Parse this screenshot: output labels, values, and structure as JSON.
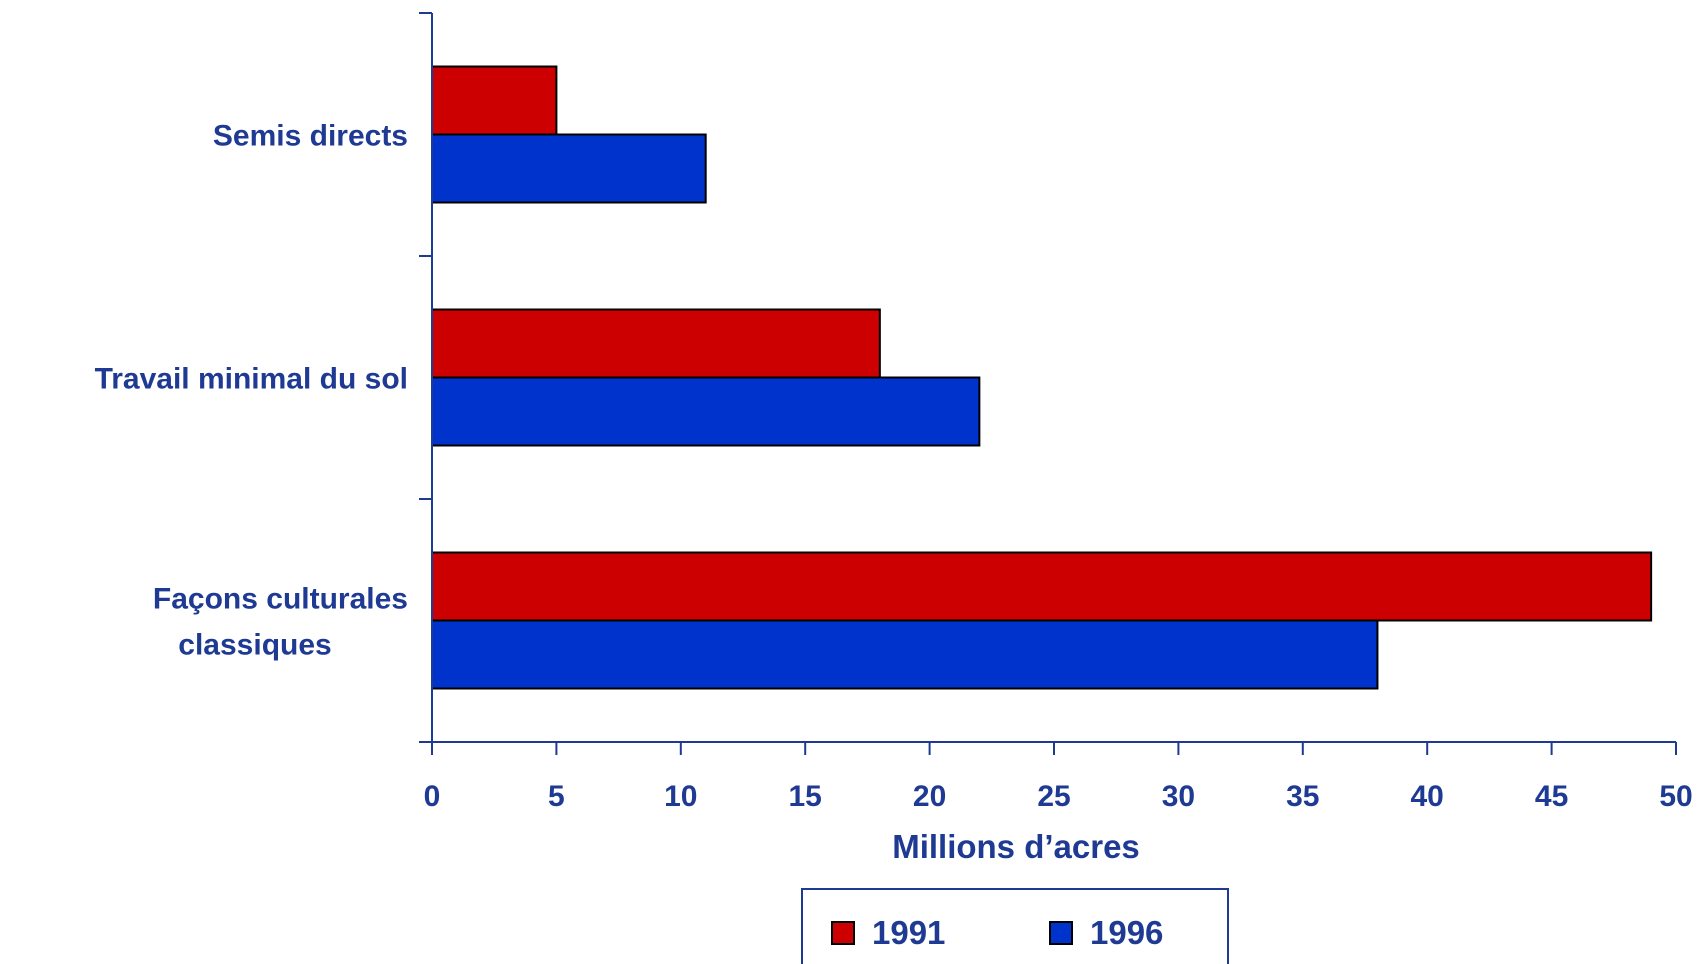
{
  "chart_data": {
    "type": "bar",
    "orientation": "horizontal",
    "categories": [
      [
        "Semis directs"
      ],
      [
        "Travail minimal du sol"
      ],
      [
        "Façons culturales",
        "classiques"
      ]
    ],
    "series": [
      {
        "name": "1991",
        "color": "#cc0000",
        "values": [
          5,
          18,
          49
        ]
      },
      {
        "name": "1996",
        "color": "#0033cc",
        "values": [
          11,
          22,
          38
        ]
      }
    ],
    "xlabel": "Millions d’acres",
    "ylabel": "",
    "xlim": [
      0,
      50
    ],
    "xticks": [
      0,
      5,
      10,
      15,
      20,
      25,
      30,
      35,
      40,
      45,
      50
    ],
    "grid": false,
    "legend_position": "bottom",
    "axis_color": "#1f3a93"
  }
}
